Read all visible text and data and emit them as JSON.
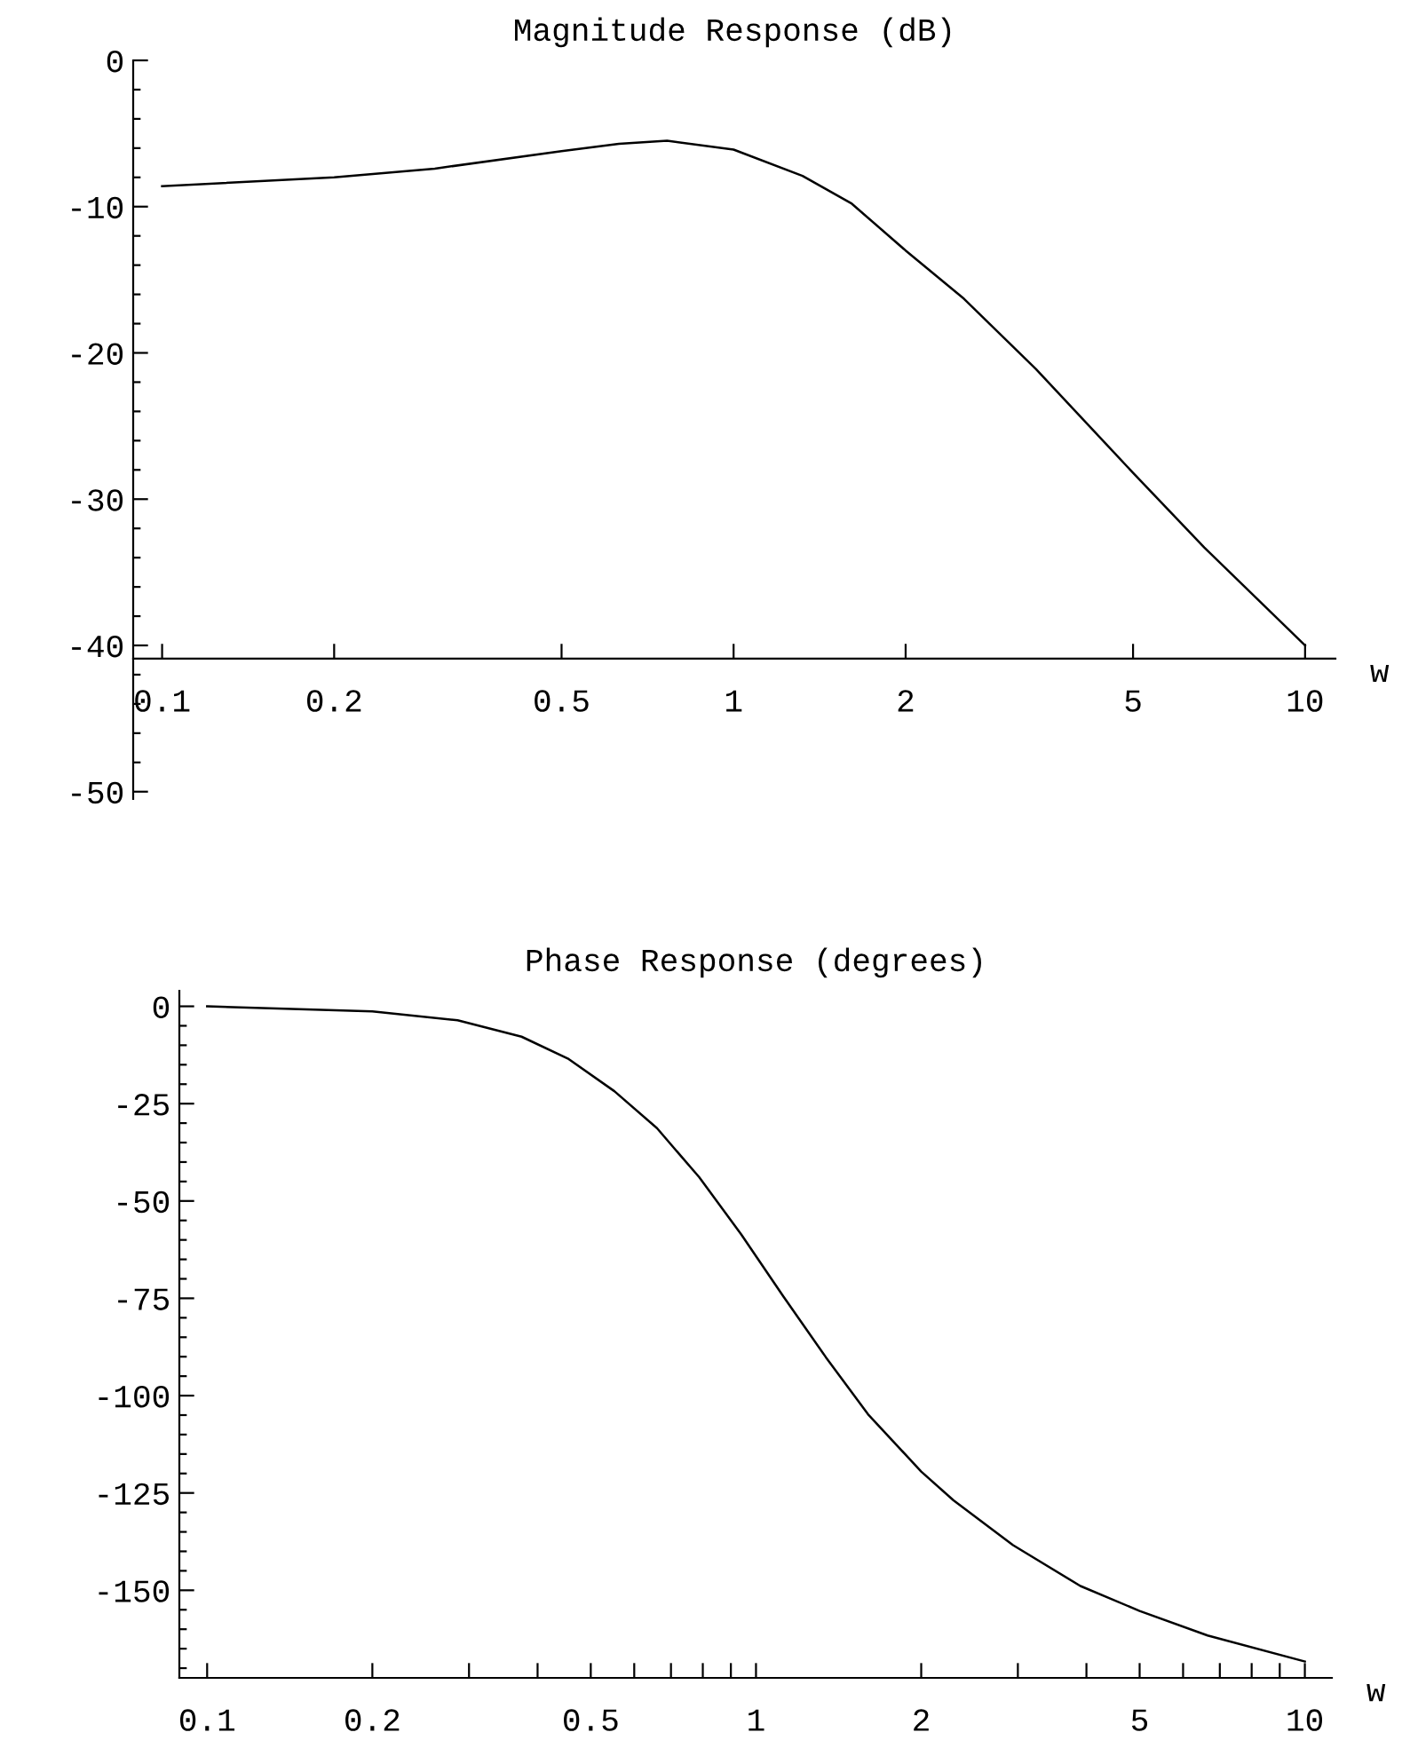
{
  "chart_data": [
    {
      "type": "line",
      "title": "Magnitude Response (dB)",
      "xlabel": "w",
      "log": "x",
      "x": [
        0.1,
        0.2,
        0.3,
        0.5,
        0.63,
        0.765,
        1,
        1.32,
        1.61,
        2,
        2.53,
        3.38,
        5,
        6.66,
        10
      ],
      "series": [
        {
          "color": "#000000",
          "values": [
            -8.6,
            -8.0,
            -7.4,
            -6.2,
            -5.7,
            -5.5,
            -6.1,
            -7.9,
            -9.8,
            -13.0,
            -16.3,
            -21.1,
            -28.2,
            -33.3,
            -40.0
          ]
        }
      ],
      "xlim": [
        0.089,
        11.3
      ],
      "ylim": [
        -50.5,
        0
      ],
      "xticks": [
        0.1,
        0.2,
        0.5,
        1,
        2,
        5,
        10
      ],
      "yticks": [
        0,
        {
          "value": -2,
          "label": null
        },
        {
          "value": -4,
          "label": null
        },
        {
          "value": -6,
          "label": null
        },
        {
          "value": -8,
          "label": null
        },
        -10,
        {
          "value": -12,
          "label": null
        },
        {
          "value": -14,
          "label": null
        },
        {
          "value": -16,
          "label": null
        },
        {
          "value": -18,
          "label": null
        },
        -20,
        {
          "value": -22,
          "label": null
        },
        {
          "value": -24,
          "label": null
        },
        {
          "value": -26,
          "label": null
        },
        {
          "value": -28,
          "label": null
        },
        -30,
        {
          "value": -32,
          "label": null
        },
        {
          "value": -34,
          "label": null
        },
        {
          "value": -36,
          "label": null
        },
        {
          "value": -38,
          "label": null
        },
        -40,
        {
          "value": -42,
          "label": null
        },
        {
          "value": -44,
          "label": null
        },
        {
          "value": -46,
          "label": null
        },
        {
          "value": -48,
          "label": null
        },
        -50
      ]
    },
    {
      "type": "line",
      "title": "Phase Response (degrees)",
      "xlabel": "w",
      "log": "x",
      "x": [
        0.1,
        0.2,
        0.286,
        0.374,
        0.454,
        0.552,
        0.66,
        0.788,
        0.94,
        1.12,
        1.34,
        1.6,
        2,
        2.29,
        2.94,
        3.9,
        5,
        6.65,
        10
      ],
      "series": [
        {
          "color": "#000000",
          "values": [
            0,
            -1.3,
            -3.6,
            -7.8,
            -13.4,
            -21.8,
            -31.3,
            -43.9,
            -58.6,
            -74.4,
            -90.1,
            -104.8,
            -119.5,
            -126.9,
            -138.4,
            -148.9,
            -155.3,
            -161.6,
            -168.3
          ]
        }
      ],
      "xlim": [
        0.089,
        11.2
      ],
      "ylim": [
        -172.5,
        4
      ],
      "xticks": [
        0.1,
        0.2,
        {
          "value": 0.3,
          "label": null
        },
        {
          "value": 0.4,
          "label": null
        },
        0.5,
        {
          "value": 0.6,
          "label": null
        },
        {
          "value": 0.7,
          "label": null
        },
        {
          "value": 0.8,
          "label": null
        },
        {
          "value": 0.9,
          "label": null
        },
        1,
        2,
        {
          "value": 3,
          "label": null
        },
        {
          "value": 4,
          "label": null
        },
        5,
        {
          "value": 6,
          "label": null
        },
        {
          "value": 7,
          "label": null
        },
        {
          "value": 8,
          "label": null
        },
        {
          "value": 9,
          "label": null
        },
        10
      ],
      "yticks": [
        0,
        {
          "value": -5,
          "label": null
        },
        {
          "value": -10,
          "label": null
        },
        {
          "value": -15,
          "label": null
        },
        {
          "value": -20,
          "label": null
        },
        -25,
        {
          "value": -30,
          "label": null
        },
        {
          "value": -35,
          "label": null
        },
        {
          "value": -40,
          "label": null
        },
        {
          "value": -45,
          "label": null
        },
        -50,
        {
          "value": -55,
          "label": null
        },
        {
          "value": -60,
          "label": null
        },
        {
          "value": -65,
          "label": null
        },
        {
          "value": -70,
          "label": null
        },
        -75,
        {
          "value": -80,
          "label": null
        },
        {
          "value": -85,
          "label": null
        },
        {
          "value": -90,
          "label": null
        },
        {
          "value": -95,
          "label": null
        },
        -100,
        {
          "value": -105,
          "label": null
        },
        {
          "value": -110,
          "label": null
        },
        {
          "value": -115,
          "label": null
        },
        {
          "value": -120,
          "label": null
        },
        -125,
        {
          "value": -130,
          "label": null
        },
        {
          "value": -135,
          "label": null
        },
        {
          "value": -140,
          "label": null
        },
        {
          "value": -145,
          "label": null
        },
        -150,
        {
          "value": -155,
          "label": null
        },
        {
          "value": -160,
          "label": null
        },
        {
          "value": -165,
          "label": null
        },
        {
          "value": -170,
          "label": null
        }
      ]
    }
  ]
}
